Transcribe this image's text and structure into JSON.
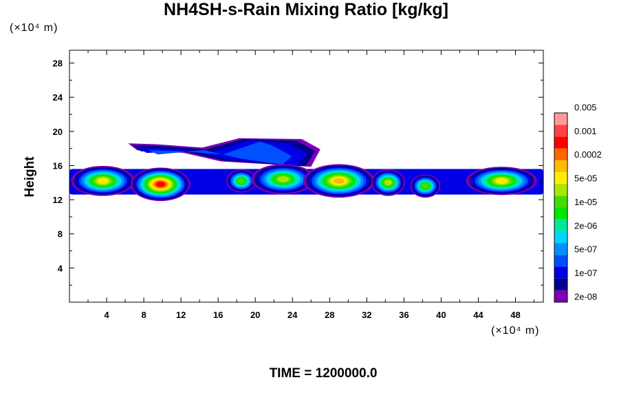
{
  "title": "NH4SH-s-Rain Mixing Ratio [kg/kg]",
  "y_unit_label": "(×10⁴ m)",
  "x_unit_label": "(×10⁴ m)",
  "footer": "TIME = 1200000.0",
  "chart_data": {
    "type": "heatmap",
    "title": "NH4SH-s-Rain Mixing Ratio [kg/kg]",
    "xlabel": "",
    "ylabel": "Height",
    "xlim": [
      0,
      51
    ],
    "ylim": [
      0,
      29.5
    ],
    "x_ticks": [
      4,
      8,
      12,
      16,
      20,
      24,
      28,
      32,
      36,
      40,
      44,
      48
    ],
    "y_ticks": [
      4,
      8,
      12,
      16,
      20,
      24,
      28
    ],
    "colorbar": {
      "colors": [
        "#7d00b4",
        "#00008c",
        "#0000e6",
        "#0050ff",
        "#0090ff",
        "#00d4ff",
        "#00e898",
        "#00e600",
        "#44dd00",
        "#aae600",
        "#ffee00",
        "#ffbb00",
        "#ff6600",
        "#ff0000",
        "#ff4444",
        "#ff9999"
      ],
      "labels": [
        "2e-08",
        "1e-07",
        "5e-07",
        "2e-06",
        "1e-05",
        "5e-05",
        "0.0002",
        "0.001",
        "0.005"
      ]
    },
    "cells": [
      {
        "x": 3.6,
        "z": 14.2,
        "w": 3.2,
        "h": 1.6,
        "peak": 10
      },
      {
        "x": 9.8,
        "z": 13.8,
        "w": 3.0,
        "h": 1.8,
        "peak": 13
      },
      {
        "x": 18.5,
        "z": 14.2,
        "w": 1.4,
        "h": 1.2,
        "peak": 8
      },
      {
        "x": 23.0,
        "z": 14.4,
        "w": 3.2,
        "h": 1.6,
        "peak": 9
      },
      {
        "x": 29.0,
        "z": 14.2,
        "w": 3.6,
        "h": 1.8,
        "peak": 11
      },
      {
        "x": 34.3,
        "z": 14.0,
        "w": 1.6,
        "h": 1.4,
        "peak": 9
      },
      {
        "x": 38.3,
        "z": 13.6,
        "w": 1.4,
        "h": 1.2,
        "peak": 8
      },
      {
        "x": 46.5,
        "z": 14.2,
        "w": 3.6,
        "h": 1.5,
        "peak": 10
      }
    ],
    "anvil": {
      "x_start": 6.3,
      "x_end": 27.0,
      "z_top": 19.3,
      "z_bottom": 15.2
    }
  }
}
